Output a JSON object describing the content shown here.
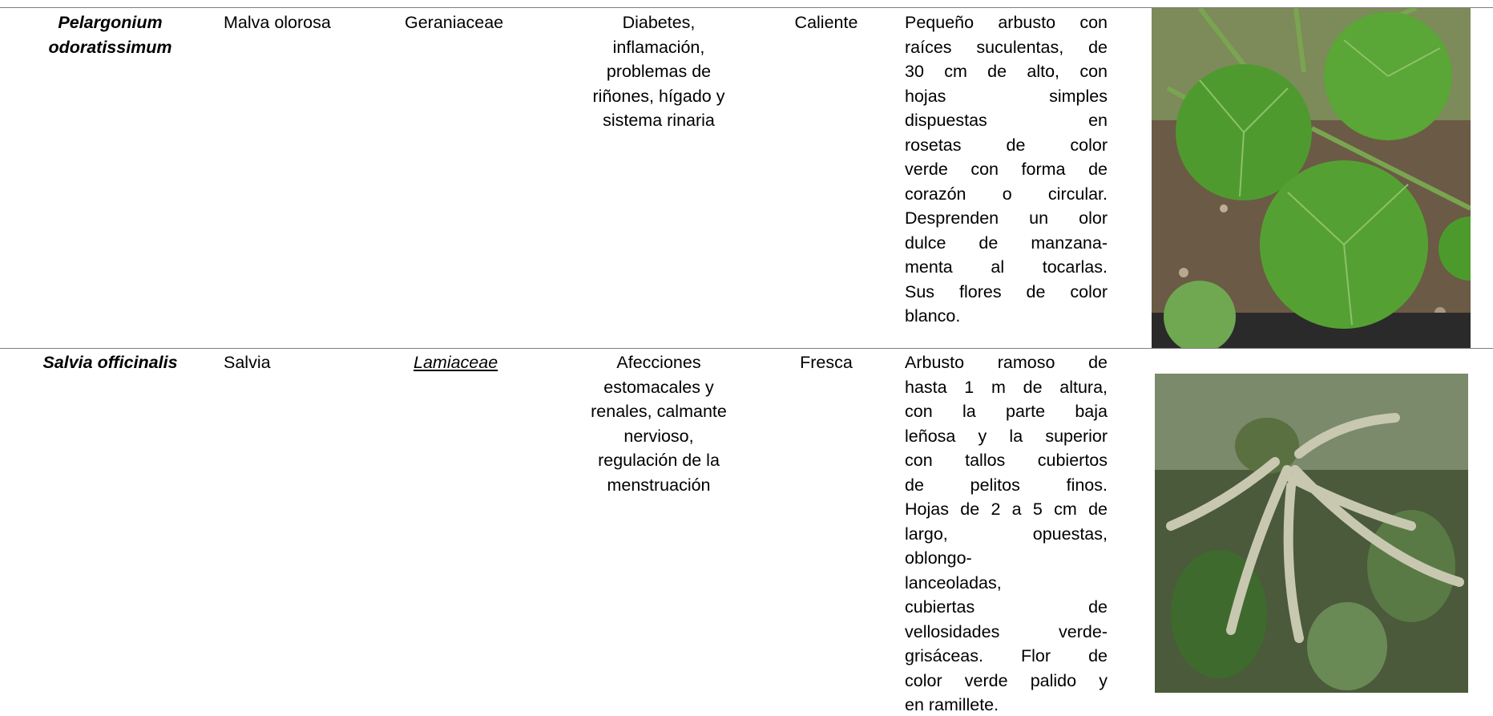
{
  "table": {
    "rows": [
      {
        "scientific_name": [
          "Pelargonium",
          "odoratissimum"
        ],
        "common_name": "Malva olorosa",
        "family": "Geraniaceae",
        "uses": [
          "Diabetes,",
          "inflamación,",
          "problemas de",
          "riñones, hígado y",
          "sistema rinaria"
        ],
        "climate": "Caliente",
        "description": [
          "Pequeño arbusto con",
          "raíces suculentas, de",
          "30 cm de alto, con",
          "hojas simples",
          "dispuestas en",
          "rosetas de color",
          "verde con forma de",
          "corazón o circular.",
          "Desprenden un olor",
          "dulce de manzana-",
          "menta al tocarlas.",
          "Sus flores de color",
          "blanco."
        ]
      },
      {
        "scientific_name": [
          "Salvia officinalis"
        ],
        "common_name": "Salvia",
        "family": "Lamiaceae",
        "uses": [
          "Afecciones",
          "estomacales y",
          "renales, calmante",
          "nervioso,",
          "regulación de la",
          "menstruación"
        ],
        "climate": "Fresca",
        "description": [
          "Arbusto ramoso de",
          "hasta 1 m de altura,",
          "con la parte baja",
          "leñosa y la superior",
          "con tallos cubiertos",
          "de pelitos finos.",
          "Hojas de 2 a 5 cm de",
          "largo, opuestas,",
          "oblongo-",
          "lanceoladas,",
          "cubiertas de",
          "vellosidades verde-",
          "grisáceas. Flor de",
          "color verde palido y",
          "en ramillete."
        ]
      }
    ]
  }
}
